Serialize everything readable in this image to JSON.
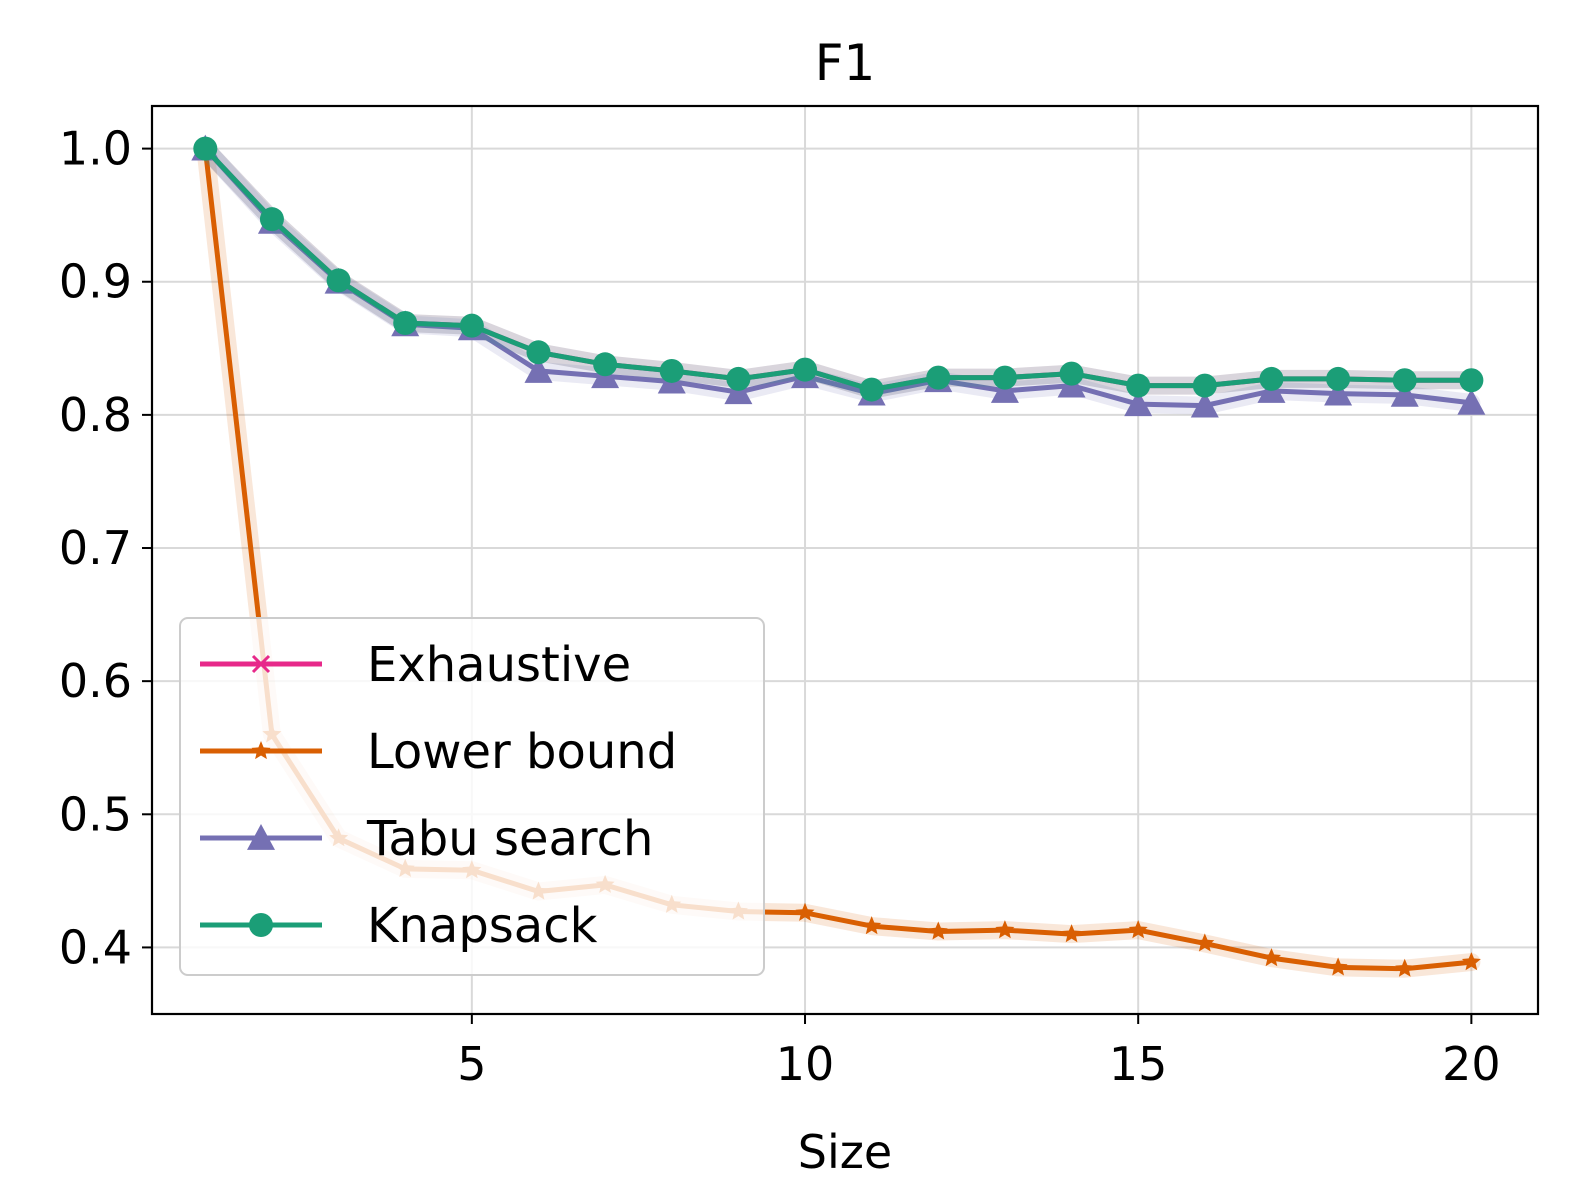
{
  "chart_data": {
    "type": "line",
    "title": "F1",
    "xlabel": "Size",
    "ylabel": "",
    "xlim": [
      0.2,
      21.0
    ],
    "ylim": [
      0.35,
      1.032
    ],
    "xticks": [
      5,
      10,
      15,
      20
    ],
    "yticks": [
      0.4,
      0.5,
      0.6,
      0.7,
      0.8,
      0.9,
      1.0
    ],
    "xtick_labels": [
      "5",
      "10",
      "15",
      "20"
    ],
    "ytick_labels": [
      "0.4",
      "0.5",
      "0.6",
      "0.7",
      "0.8",
      "0.9",
      "1.0"
    ],
    "grid": true,
    "legend_position": "lower-left",
    "x": [
      1,
      2,
      3,
      4,
      5,
      6,
      7,
      8,
      9,
      10,
      11,
      12,
      13,
      14,
      15,
      16,
      17,
      18,
      19,
      20
    ],
    "series": [
      {
        "name": "Exhaustive",
        "marker": "x",
        "color": "#e7298a",
        "values": [
          1.0,
          0.947,
          0.901,
          0.869,
          0.867,
          0.847,
          0.838,
          0.833,
          0.827,
          0.834,
          0.819,
          0.828,
          0.828,
          0.831,
          0.822,
          0.822,
          0.827,
          0.827,
          0.826,
          0.826
        ]
      },
      {
        "name": "Lower bound",
        "marker": "star",
        "color": "#d95f02",
        "values": [
          1.0,
          0.56,
          0.482,
          0.459,
          0.458,
          0.442,
          0.447,
          0.432,
          0.427,
          0.426,
          0.416,
          0.412,
          0.413,
          0.41,
          0.413,
          0.403,
          0.392,
          0.385,
          0.384,
          0.389
        ]
      },
      {
        "name": "Tabu search",
        "marker": "triangle",
        "color": "#7570b3",
        "values": [
          1.0,
          0.945,
          0.9,
          0.868,
          0.865,
          0.833,
          0.829,
          0.825,
          0.817,
          0.829,
          0.816,
          0.826,
          0.818,
          0.822,
          0.808,
          0.807,
          0.818,
          0.816,
          0.815,
          0.809
        ]
      },
      {
        "name": "Knapsack",
        "marker": "circle",
        "color": "#1b9e77",
        "values": [
          1.0,
          0.947,
          0.901,
          0.869,
          0.867,
          0.847,
          0.838,
          0.833,
          0.827,
          0.834,
          0.819,
          0.828,
          0.828,
          0.831,
          0.822,
          0.822,
          0.827,
          0.827,
          0.826,
          0.826
        ]
      }
    ]
  }
}
